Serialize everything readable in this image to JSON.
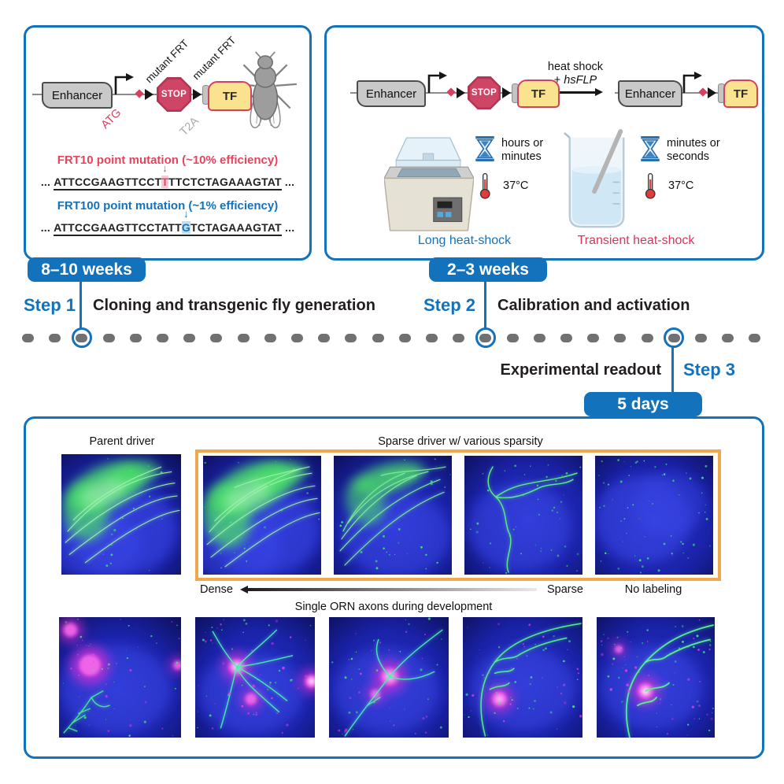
{
  "colors": {
    "accent_blue": "#1272bc",
    "crimson": "#d34060",
    "tf_yellow": "#fae28f",
    "orange_box": "#f0a850",
    "construct_gray": "#c9c9c9",
    "timeline_dot_gray": "#717171"
  },
  "panel1": {
    "construct": {
      "enhancer": "Enhancer",
      "atg": "ATG",
      "mutant_frt_1": "mutant FRT",
      "stop": "STOP",
      "mutant_frt_2": "mutant FRT",
      "t2a": "T2A",
      "tf": "TF"
    },
    "ellipsis": "...",
    "frt10": {
      "title": "FRT10 point mutation (~10% efficiency)",
      "pre": "ATTCCGAAGTTCCT",
      "mut": "T",
      "post": "TTCTCTAGAAAGTAT",
      "arrow": "↓"
    },
    "frt100": {
      "title": "FRT100 point mutation (~1% efficiency)",
      "pre": "ATTCCGAAGTTCCTATT",
      "mut": "G",
      "post": "TCTAGAAAGTAT",
      "arrow": "↓"
    }
  },
  "panel2": {
    "construct_before": {
      "enhancer": "Enhancer",
      "stop": "STOP",
      "tf": "TF"
    },
    "construct_after": {
      "enhancer": "Enhancer",
      "tf": "TF"
    },
    "arrow_label": {
      "line1": "heat shock",
      "plus": "+ ",
      "hsflp": "hsFLP"
    },
    "long_heat_shock": {
      "duration_line1": "hours or",
      "duration_line2": "minutes",
      "temperature": "37°C",
      "caption": "Long heat-shock"
    },
    "transient_heat_shock": {
      "duration_line1": "minutes or",
      "duration_line2": "seconds",
      "temperature": "37°C",
      "caption": "Transient heat-shock"
    }
  },
  "timeline": {
    "badges": {
      "step1": "8–10 weeks",
      "step2": "2–3 weeks",
      "step3": "5 days"
    },
    "step1": {
      "label": "Step 1",
      "title": "Cloning and transgenic fly generation"
    },
    "step2": {
      "label": "Step 2",
      "title": "Calibration and activation"
    },
    "step3": {
      "label": "Step 3",
      "title": "Experimental readout"
    }
  },
  "readout": {
    "parent_driver_label": "Parent driver",
    "sparse_driver_label": "Sparse driver w/ various sparsity",
    "dense_label": "Dense",
    "sparse_label": "Sparse",
    "no_labeling_label": "No labeling",
    "development_label": "Single ORN axons during development"
  }
}
